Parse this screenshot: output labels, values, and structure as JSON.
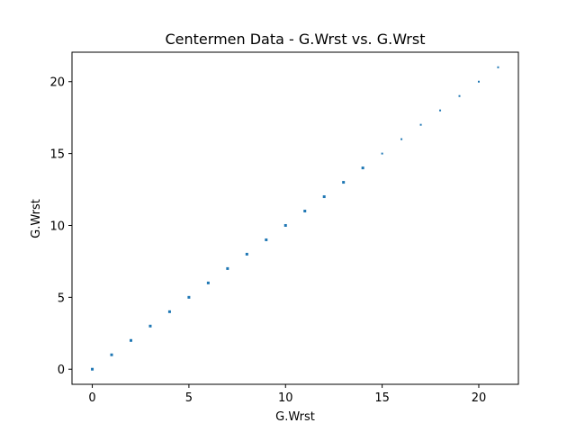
{
  "chart_data": {
    "type": "scatter",
    "title": "Centermen Data - G.Wrst vs. G.Wrst",
    "xlabel": "G.Wrst",
    "ylabel": "G.Wrst",
    "xlim": [
      -1.05,
      22.05
    ],
    "ylim": [
      -1.05,
      22.05
    ],
    "xticks": [
      0,
      5,
      10,
      15,
      20
    ],
    "yticks": [
      0,
      5,
      10,
      15,
      20
    ],
    "grid": false,
    "marker_color": "#1f77b4",
    "series": [
      {
        "x": [
          0,
          1,
          2,
          3,
          4,
          5,
          6,
          7,
          8,
          9,
          10,
          11,
          12,
          13,
          14,
          15,
          16,
          17,
          18,
          19,
          20,
          21
        ],
        "y": [
          0,
          1,
          2,
          3,
          4,
          5,
          6,
          7,
          8,
          9,
          10,
          11,
          12,
          13,
          14,
          15,
          16,
          17,
          18,
          19,
          20,
          21
        ]
      }
    ]
  }
}
